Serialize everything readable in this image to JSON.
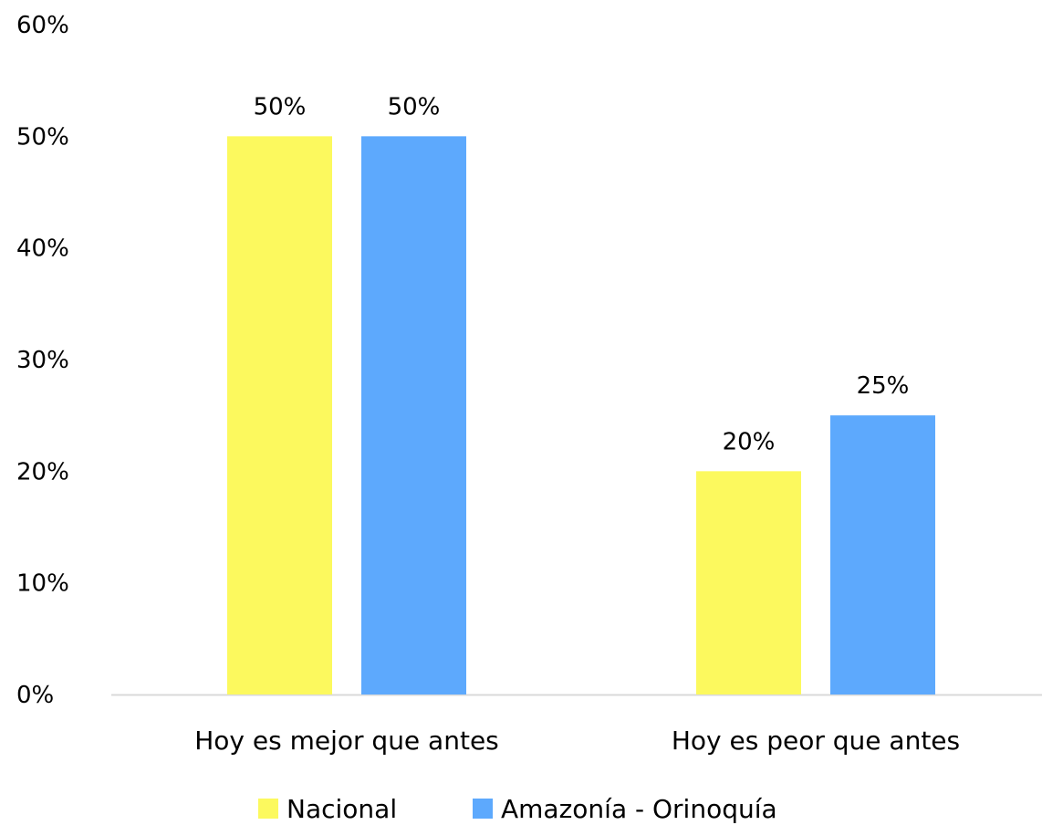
{
  "chart_data": {
    "type": "bar",
    "title": "",
    "xlabel": "",
    "ylabel": "",
    "categories": [
      "Hoy es mejor que antes",
      "Hoy es peor que antes"
    ],
    "series": [
      {
        "name": "Nacional",
        "values": [
          50,
          20
        ],
        "color": "#FCF95E"
      },
      {
        "name": "Amazonía - Orinoquía",
        "values": [
          50,
          25
        ],
        "color": "#5DA9FD"
      }
    ],
    "ylim": [
      0,
      60
    ],
    "yticks": [
      0,
      10,
      20,
      30,
      40,
      50,
      60
    ],
    "ytick_labels": [
      "0%",
      "10%",
      "20%",
      "30%",
      "40%",
      "50%",
      "60%"
    ],
    "value_labels": [
      [
        "50%",
        "20%"
      ],
      [
        "50%",
        "25%"
      ]
    ],
    "grid": false,
    "legend_position": "bottom",
    "axis_color": "#D9D9D9"
  }
}
